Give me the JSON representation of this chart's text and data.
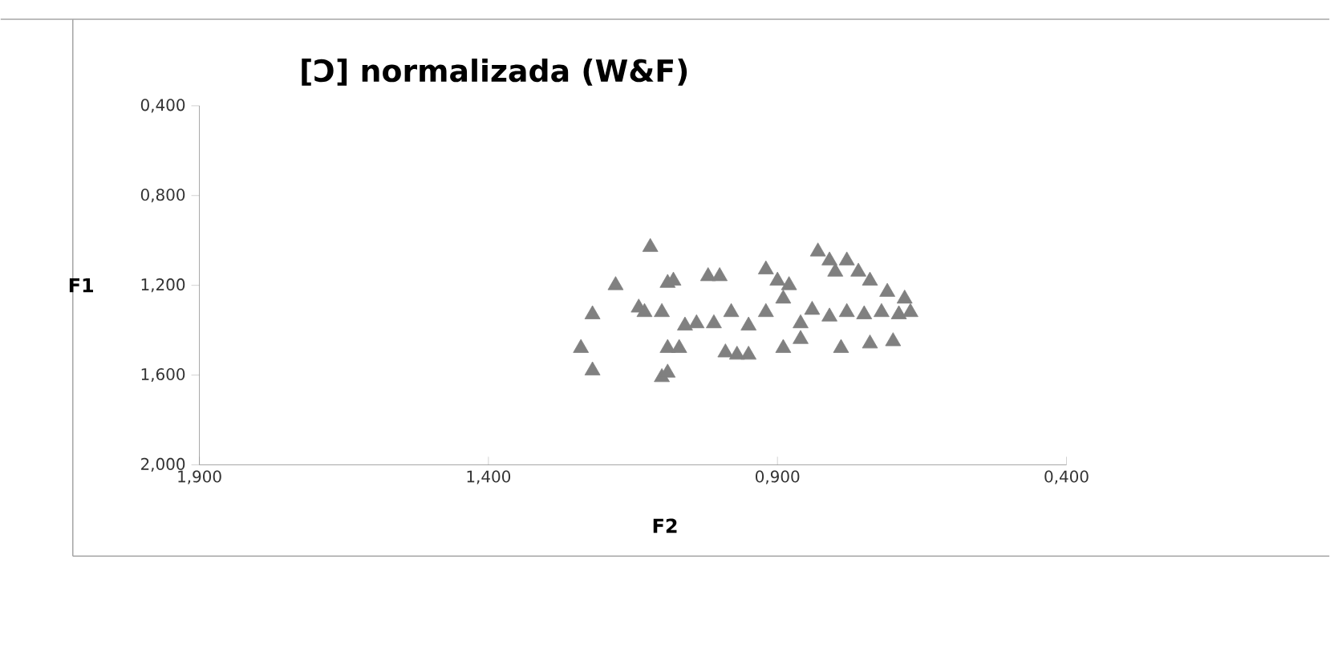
{
  "chart_data": {
    "type": "scatter",
    "title": "[Ɔ] normalizada (W&F)",
    "xlabel": "F2",
    "ylabel": "F1",
    "xlim": [
      1.9,
      0.4
    ],
    "ylim": [
      2.0,
      0.4
    ],
    "xticks": [
      {
        "value": 1.9,
        "label": "1,900"
      },
      {
        "value": 1.4,
        "label": "1,400"
      },
      {
        "value": 0.9,
        "label": "0,900"
      },
      {
        "value": 0.4,
        "label": "0,400"
      }
    ],
    "yticks": [
      {
        "value": 0.4,
        "label": "0,400"
      },
      {
        "value": 0.8,
        "label": "0,800"
      },
      {
        "value": 1.2,
        "label": "1,200"
      },
      {
        "value": 1.6,
        "label": "1,600"
      },
      {
        "value": 2.0,
        "label": "2,000"
      }
    ],
    "marker": "triangle",
    "series": [
      {
        "color": "#808080",
        "x": [
          1.12,
          1.18,
          1.22,
          1.24,
          1.22,
          1.14,
          1.1,
          1.09,
          1.09,
          1.08,
          1.02,
          1.0,
          0.92,
          0.9,
          0.88,
          0.83,
          0.78,
          0.8,
          0.74,
          0.71,
          0.68,
          0.67,
          1.13,
          1.1,
          1.06,
          1.04,
          1.01,
          0.98,
          0.95,
          0.92,
          0.89,
          0.86,
          0.84,
          0.81,
          0.78,
          0.75,
          0.72,
          0.69,
          1.07,
          0.99,
          0.97,
          0.95,
          0.89,
          0.86,
          0.79,
          0.74,
          0.7,
          1.09,
          0.81,
          0.76
        ],
        "values": [
          1.03,
          1.2,
          1.33,
          1.48,
          1.58,
          1.3,
          1.61,
          1.19,
          1.48,
          1.18,
          1.16,
          1.16,
          1.13,
          1.18,
          1.2,
          1.05,
          1.09,
          1.14,
          1.18,
          1.23,
          1.26,
          1.32,
          1.32,
          1.32,
          1.38,
          1.37,
          1.37,
          1.32,
          1.38,
          1.32,
          1.26,
          1.37,
          1.31,
          1.34,
          1.32,
          1.33,
          1.32,
          1.33,
          1.48,
          1.5,
          1.51,
          1.51,
          1.48,
          1.44,
          1.48,
          1.46,
          1.45,
          1.59,
          1.09,
          1.14
        ]
      }
    ]
  }
}
